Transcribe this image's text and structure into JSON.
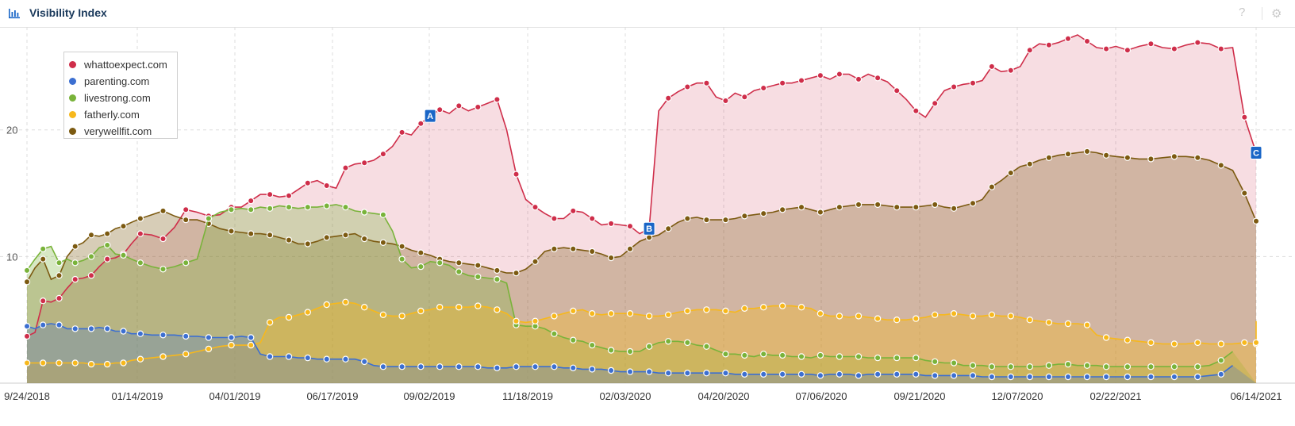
{
  "header": {
    "title": "Visibility Index",
    "help_icon": "?",
    "settings_icon": "gear-icon",
    "chart_icon": "bar-chart-icon"
  },
  "colors": {
    "whattoexpect": "#cf2e4a",
    "parenting": "#3c6fd1",
    "livestrong": "#79b33a",
    "fatherly": "#f7b81c",
    "verywellfit": "#7c5a11",
    "grid": "#dddddd",
    "marker": "#1a66c7"
  },
  "chart_data": {
    "type": "area",
    "x_tick_labels": [
      "9/24/2018",
      "01/14/2019",
      "04/01/2019",
      "06/17/2019",
      "09/02/2019",
      "11/18/2019",
      "02/03/2020",
      "04/20/2020",
      "07/06/2020",
      "09/21/2020",
      "12/07/2020",
      "02/22/2021",
      "06/14/2021"
    ],
    "x_tick_index": [
      0,
      8,
      13,
      19,
      25,
      31,
      37,
      43,
      49,
      55,
      61,
      67,
      74
    ],
    "y_ticks": [
      10,
      20
    ],
    "ylim": [
      0,
      27.5
    ],
    "grid": true,
    "legend_position": "top-left",
    "series": [
      {
        "name": "whattoexpect.com",
        "color_key": "whattoexpect",
        "values": [
          3.7,
          4.0,
          6.5,
          6.4,
          6.7,
          7.5,
          8.2,
          8.3,
          8.5,
          9.2,
          9.8,
          9.9,
          10.2,
          11.0,
          11.8,
          11.7,
          11.4,
          12.3,
          13.7,
          13.5,
          13.2,
          13.3,
          13.9,
          13.9,
          14.4,
          14.9,
          14.9,
          14.7,
          14.8,
          15.3,
          15.8,
          16.0,
          15.6,
          15.4,
          17.0,
          17.3,
          17.4,
          17.6,
          18.1,
          18.7,
          19.8,
          19.6,
          20.5,
          21.1,
          21.6,
          21.3,
          21.9,
          21.5,
          21.8,
          22.1,
          22.4,
          20.0,
          16.5,
          14.5,
          13.9,
          13.4,
          13.0,
          13.0,
          13.6,
          13.5,
          13.0,
          12.5,
          12.6,
          12.5,
          12.4,
          11.8,
          12.2,
          21.5,
          22.5,
          23.0,
          23.4,
          23.7,
          23.7,
          22.6,
          22.3,
          22.9,
          22.6,
          23.1,
          23.3,
          23.5,
          23.7,
          23.7,
          23.9,
          24.1,
          24.3,
          24.0,
          24.4,
          24.4,
          24.0,
          24.4,
          24.1,
          23.8,
          23.1,
          22.4,
          21.5,
          21.0,
          22.1,
          23.1,
          23.4,
          23.6,
          23.7,
          23.9,
          25.0,
          24.6,
          24.7,
          25.0,
          26.3,
          26.8,
          26.7,
          26.9,
          27.2,
          27.5,
          27.0,
          26.5,
          26.4,
          26.6,
          26.3,
          26.6,
          26.8,
          26.5,
          26.4,
          26.7,
          26.9,
          26.8,
          26.4,
          26.5,
          21.0,
          18.2
        ]
      },
      {
        "name": "parenting.com",
        "color_key": "parenting",
        "values": [
          4.5,
          4.3,
          4.6,
          4.7,
          4.6,
          4.3,
          4.3,
          4.3,
          4.3,
          4.4,
          4.3,
          4.1,
          4.1,
          3.9,
          3.9,
          3.8,
          3.8,
          3.8,
          3.7,
          3.7,
          3.6,
          3.6,
          3.6,
          3.7,
          3.6,
          2.3,
          2.1,
          2.1,
          2.1,
          2.0,
          2.0,
          1.9,
          1.9,
          1.9,
          1.9,
          1.9,
          1.7,
          1.4,
          1.3,
          1.3,
          1.3,
          1.3,
          1.3,
          1.3,
          1.3,
          1.3,
          1.3,
          1.3,
          1.3,
          1.2,
          1.2,
          1.2,
          1.3,
          1.3,
          1.3,
          1.3,
          1.3,
          1.2,
          1.2,
          1.1,
          1.1,
          1.1,
          1.0,
          0.9,
          0.9,
          0.9,
          0.9,
          0.8,
          0.8,
          0.8,
          0.8,
          0.8,
          0.8,
          0.8,
          0.8,
          0.7,
          0.7,
          0.7,
          0.7,
          0.7,
          0.7,
          0.7,
          0.7,
          0.7,
          0.6,
          0.7,
          0.7,
          0.7,
          0.6,
          0.7,
          0.7,
          0.7,
          0.7,
          0.7,
          0.7,
          0.6,
          0.6,
          0.6,
          0.6,
          0.6,
          0.6,
          0.5,
          0.5,
          0.5,
          0.5,
          0.5,
          0.5,
          0.5,
          0.5,
          0.5,
          0.5,
          0.5,
          0.5,
          0.5,
          0.5,
          0.5,
          0.5,
          0.5,
          0.5,
          0.5,
          0.5,
          0.5,
          0.5,
          0.6,
          0.7,
          1.4
        ]
      },
      {
        "name": "livestrong.com",
        "color_key": "livestrong",
        "values": [
          8.9,
          9.8,
          10.6,
          10.8,
          9.5,
          9.8,
          9.5,
          9.7,
          10.0,
          10.7,
          10.9,
          10.2,
          10.1,
          9.8,
          9.5,
          9.2,
          9.0,
          9.2,
          9.5,
          9.8,
          13.0,
          13.5,
          13.7,
          13.8,
          13.7,
          13.9,
          13.8,
          14.0,
          13.9,
          13.8,
          13.9,
          13.9,
          14.0,
          14.1,
          13.9,
          13.6,
          13.5,
          13.4,
          13.3,
          12.0,
          9.8,
          9.1,
          9.2,
          9.6,
          9.5,
          9.3,
          8.8,
          8.5,
          8.4,
          8.3,
          8.2,
          7.9,
          4.6,
          4.5,
          4.5,
          4.3,
          3.9,
          3.6,
          3.4,
          3.3,
          3.0,
          2.8,
          2.6,
          2.5,
          2.5,
          2.5,
          2.9,
          3.2,
          3.3,
          3.3,
          3.2,
          3.0,
          2.9,
          2.6,
          2.3,
          2.3,
          2.2,
          2.1,
          2.3,
          2.2,
          2.2,
          2.1,
          2.1,
          2.0,
          2.2,
          2.1,
          2.1,
          2.1,
          2.1,
          2.0,
          2.0,
          2.0,
          2.0,
          2.0,
          2.0,
          1.8,
          1.7,
          1.6,
          1.6,
          1.4,
          1.4,
          1.4,
          1.3,
          1.3,
          1.3,
          1.3,
          1.3,
          1.3,
          1.4,
          1.5,
          1.5,
          1.4,
          1.4,
          1.4,
          1.3,
          1.3,
          1.3,
          1.3,
          1.3,
          1.3,
          1.3,
          1.3,
          1.3,
          1.4,
          1.8,
          2.5
        ]
      },
      {
        "name": "fatherly.com",
        "color_key": "fatherly",
        "values": [
          1.6,
          1.6,
          1.6,
          1.6,
          1.6,
          1.6,
          1.6,
          1.6,
          1.5,
          1.5,
          1.5,
          1.6,
          1.6,
          1.8,
          1.9,
          2.0,
          2.1,
          2.2,
          2.3,
          2.5,
          2.7,
          2.9,
          3.0,
          3.0,
          3.0,
          3.2,
          4.8,
          5.2,
          5.2,
          5.4,
          5.6,
          5.9,
          6.2,
          6.3,
          6.4,
          6.3,
          6.0,
          5.7,
          5.4,
          5.3,
          5.3,
          5.5,
          5.7,
          5.8,
          6.0,
          6.0,
          6.0,
          6.0,
          6.1,
          6.0,
          5.8,
          5.5,
          4.9,
          4.8,
          4.9,
          5.1,
          5.3,
          5.5,
          5.7,
          5.8,
          5.5,
          5.4,
          5.5,
          5.5,
          5.5,
          5.4,
          5.3,
          5.3,
          5.4,
          5.6,
          5.7,
          5.8,
          5.8,
          5.8,
          5.7,
          5.6,
          5.9,
          5.9,
          6.0,
          6.1,
          6.1,
          6.1,
          6.0,
          5.9,
          5.5,
          5.3,
          5.3,
          5.2,
          5.3,
          5.2,
          5.1,
          5.0,
          5.0,
          5.0,
          5.1,
          5.2,
          5.4,
          5.4,
          5.5,
          5.4,
          5.3,
          5.3,
          5.4,
          5.3,
          5.3,
          5.2,
          5.0,
          4.9,
          4.8,
          4.7,
          4.7,
          4.7,
          4.6,
          3.8,
          3.6,
          3.5,
          3.4,
          3.3,
          3.2,
          3.1,
          3.1,
          3.1,
          3.2,
          3.1,
          3.1,
          3.1,
          3.2,
          3.1,
          3.2,
          4.9
        ]
      },
      {
        "name": "verywellfit.com",
        "color_key": "verywellfit",
        "values": [
          8.0,
          9.1,
          9.8,
          8.2,
          8.5,
          10.0,
          10.8,
          11.1,
          11.7,
          11.6,
          11.8,
          12.2,
          12.4,
          12.7,
          13.0,
          13.3,
          13.6,
          13.2,
          12.9,
          12.9,
          12.6,
          12.2,
          12.0,
          11.9,
          11.8,
          11.8,
          11.7,
          11.5,
          11.3,
          11.0,
          11.0,
          11.2,
          11.5,
          11.6,
          11.7,
          11.8,
          11.4,
          11.2,
          11.1,
          11.0,
          10.8,
          10.5,
          10.3,
          10.1,
          9.8,
          9.6,
          9.5,
          9.4,
          9.3,
          9.1,
          8.9,
          8.7,
          8.7,
          9.0,
          9.6,
          10.4,
          10.6,
          10.7,
          10.6,
          10.5,
          10.4,
          10.2,
          9.9,
          10.0,
          10.6,
          11.2,
          11.5,
          11.7,
          12.2,
          12.7,
          13.0,
          13.1,
          12.9,
          12.9,
          12.9,
          13.0,
          13.2,
          13.3,
          13.4,
          13.5,
          13.7,
          13.8,
          13.9,
          13.7,
          13.5,
          13.7,
          13.9,
          14.0,
          14.1,
          14.1,
          14.1,
          14.0,
          13.9,
          13.9,
          13.9,
          14.0,
          14.1,
          13.9,
          13.8,
          14.0,
          14.2,
          14.5,
          15.5,
          16.0,
          16.6,
          17.1,
          17.3,
          17.6,
          17.8,
          18.0,
          18.1,
          18.2,
          18.3,
          18.2,
          18.0,
          17.9,
          17.8,
          17.7,
          17.7,
          17.8,
          17.9,
          17.9,
          17.8,
          17.6,
          17.2,
          16.8,
          15.0,
          12.8
        ]
      }
    ],
    "annotations": [
      {
        "label": "A",
        "index": 43
      },
      {
        "label": "B",
        "index": 66
      },
      {
        "label": "C",
        "index": 127
      }
    ]
  }
}
